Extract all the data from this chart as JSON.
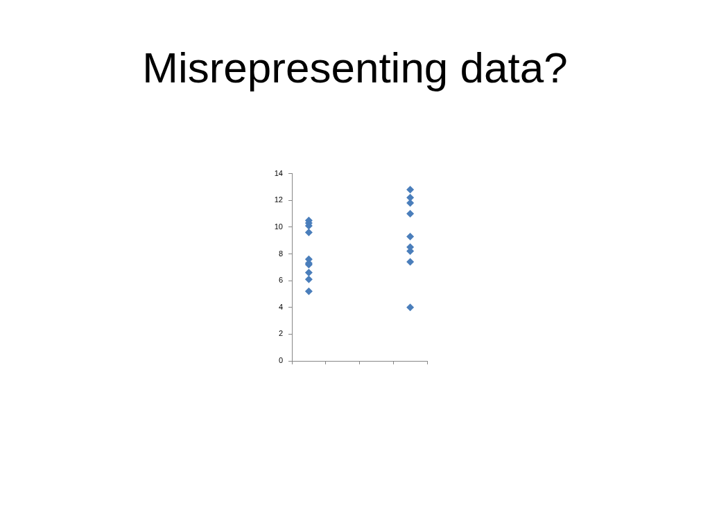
{
  "chart_data": {
    "type": "scatter",
    "title": "Misrepresenting data?",
    "categories": [
      null,
      null,
      null,
      null
    ],
    "ylim": [
      0,
      14
    ],
    "yticks": [
      0,
      2,
      4,
      6,
      8,
      10,
      12,
      14
    ],
    "marker": "diamond",
    "series": [
      {
        "color": "#4a7ebb",
        "values": [
          10.5,
          null,
          null,
          12.8
        ]
      },
      {
        "color": "#4a7ebb",
        "values": [
          10.3,
          null,
          null,
          12.2
        ]
      },
      {
        "color": "#4a7ebb",
        "values": [
          10.1,
          null,
          null,
          11.8
        ]
      },
      {
        "color": "#4a7ebb",
        "values": [
          9.6,
          null,
          null,
          11.0
        ]
      },
      {
        "color": "#4a7ebb",
        "values": [
          7.6,
          null,
          null,
          9.3
        ]
      },
      {
        "color": "#4a7ebb",
        "values": [
          7.3,
          null,
          null,
          8.5
        ]
      },
      {
        "color": "#4a7ebb",
        "values": [
          7.2,
          null,
          null,
          8.2
        ]
      },
      {
        "color": "#4a7ebb",
        "values": [
          6.6,
          null,
          null,
          7.4
        ]
      },
      {
        "color": "#4a7ebb",
        "values": [
          6.1,
          null,
          null,
          4.0
        ]
      },
      {
        "color": "#4a7ebb",
        "values": [
          5.2,
          null,
          null,
          null
        ]
      }
    ]
  }
}
